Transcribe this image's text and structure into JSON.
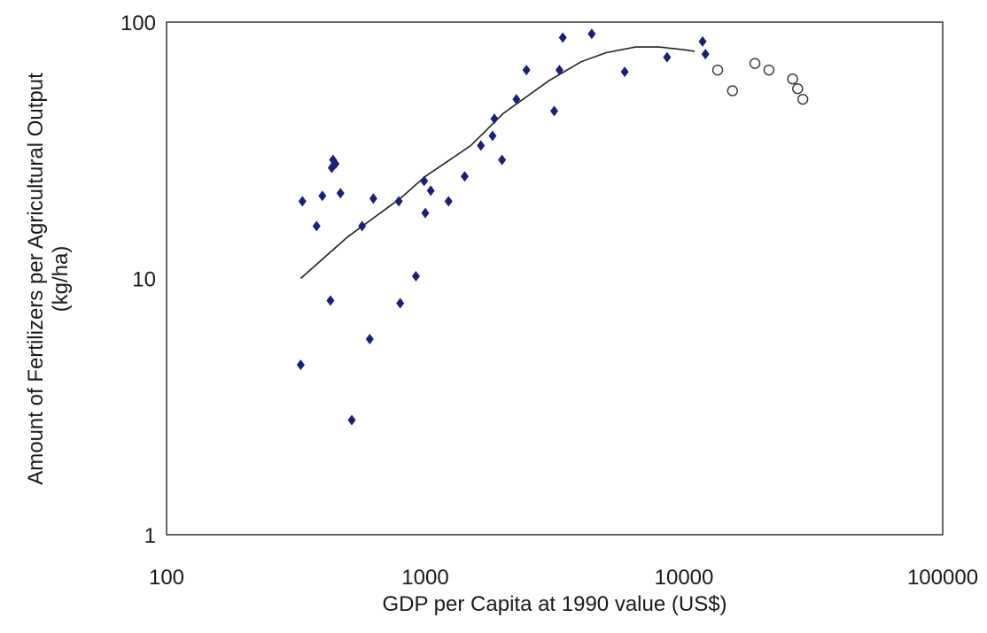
{
  "chart_data": {
    "type": "scatter",
    "title": "",
    "xlabel": "GDP per Capita at 1990 value (US$)",
    "ylabel_lines": [
      "Amount of Fertilizers per Agricultural Output",
      "(kg/ha)"
    ],
    "x_scale": "log",
    "y_scale": "log",
    "xlim": [
      100,
      100000
    ],
    "ylim": [
      1,
      100
    ],
    "x_ticks": [
      100,
      1000,
      10000,
      100000
    ],
    "y_ticks": [
      1,
      10,
      100
    ],
    "x_tick_labels": [
      "100",
      "1000",
      "10000",
      "100000"
    ],
    "y_tick_labels": [
      "1",
      "10",
      "100"
    ],
    "grid": false,
    "legend": "none",
    "colors": {
      "diamond": "#1a1f78",
      "circle": "#333333",
      "trend": "#222222",
      "frame": "#333333"
    },
    "series": [
      {
        "marker": "diamond",
        "points": [
          [
            330,
            4.6
          ],
          [
            335,
            20
          ],
          [
            380,
            16
          ],
          [
            400,
            21
          ],
          [
            430,
            8.2
          ],
          [
            435,
            27
          ],
          [
            440,
            29
          ],
          [
            450,
            28
          ],
          [
            470,
            21.5
          ],
          [
            520,
            2.8
          ],
          [
            570,
            16
          ],
          [
            610,
            5.8
          ],
          [
            630,
            20.5
          ],
          [
            790,
            20
          ],
          [
            800,
            8
          ],
          [
            920,
            10.2
          ],
          [
            990,
            24
          ],
          [
            1000,
            18
          ],
          [
            1050,
            22
          ],
          [
            1230,
            20
          ],
          [
            1420,
            25
          ],
          [
            1640,
            33
          ],
          [
            1820,
            36
          ],
          [
            1850,
            42
          ],
          [
            1980,
            29
          ],
          [
            2250,
            50
          ],
          [
            2460,
            65
          ],
          [
            3150,
            45
          ],
          [
            3300,
            65
          ],
          [
            3400,
            87
          ],
          [
            4400,
            90
          ],
          [
            5900,
            64
          ],
          [
            8600,
            73
          ],
          [
            11800,
            84
          ],
          [
            12100,
            75
          ]
        ]
      },
      {
        "marker": "circle",
        "points": [
          [
            13500,
            65
          ],
          [
            15400,
            54
          ],
          [
            18800,
            69
          ],
          [
            21300,
            65
          ],
          [
            26300,
            60
          ],
          [
            27500,
            55
          ],
          [
            28800,
            50
          ]
        ]
      },
      {
        "marker": "line",
        "name": "",
        "points": [
          [
            330,
            10
          ],
          [
            500,
            14.5
          ],
          [
            800,
            20.5
          ],
          [
            1000,
            25
          ],
          [
            1500,
            33
          ],
          [
            2000,
            44
          ],
          [
            3000,
            59
          ],
          [
            4000,
            70
          ],
          [
            5000,
            76
          ],
          [
            6500,
            80
          ],
          [
            8000,
            80
          ],
          [
            10000,
            78
          ],
          [
            11000,
            77
          ]
        ]
      }
    ]
  }
}
